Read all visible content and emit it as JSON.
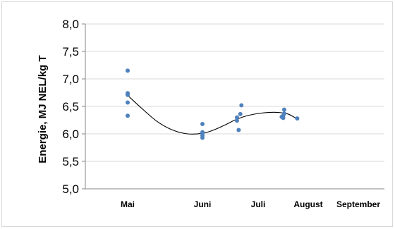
{
  "chart_data": {
    "type": "scatter",
    "title": "",
    "xlabel": "",
    "ylabel": "Energie,  MJ NEL/kg T",
    "categories": [
      "Mai",
      "Juni",
      "Juli",
      "August",
      "September"
    ],
    "ylim": [
      5.0,
      8.0
    ],
    "yticks": [
      5.0,
      5.5,
      6.0,
      6.5,
      7.0,
      7.5,
      8.0
    ],
    "ytick_labels": [
      "5,0",
      "5,5",
      "6,0",
      "6,5",
      "7,0",
      "7,5",
      "8,0"
    ],
    "grid": "horizontal",
    "legend": "none",
    "series": [
      {
        "points": [
          {
            "x": 0.0,
            "y": 7.15
          },
          {
            "x": 0.0,
            "y": 6.74
          },
          {
            "x": 0.0,
            "y": 6.71
          },
          {
            "x": 0.0,
            "y": 6.57
          },
          {
            "x": 0.0,
            "y": 6.33
          },
          {
            "x": 1.0,
            "y": 6.18
          },
          {
            "x": 1.0,
            "y": 6.03
          },
          {
            "x": 1.0,
            "y": 6.01
          },
          {
            "x": 1.0,
            "y": 5.97
          },
          {
            "x": 1.0,
            "y": 5.93
          },
          {
            "x": 1.7,
            "y": 6.52
          },
          {
            "x": 1.68,
            "y": 6.36
          },
          {
            "x": 1.62,
            "y": 6.3
          },
          {
            "x": 1.62,
            "y": 6.24
          },
          {
            "x": 1.65,
            "y": 6.07
          },
          {
            "x": 2.52,
            "y": 6.44
          },
          {
            "x": 2.52,
            "y": 6.37
          },
          {
            "x": 2.5,
            "y": 6.33
          },
          {
            "x": 2.47,
            "y": 6.31
          },
          {
            "x": 2.5,
            "y": 6.29
          },
          {
            "x": 2.78,
            "y": 6.28
          }
        ]
      }
    ],
    "trendline": {
      "type": "polynomial",
      "points": [
        {
          "x": 0.0,
          "y": 6.7
        },
        {
          "x": 0.2,
          "y": 6.45
        },
        {
          "x": 0.4,
          "y": 6.22
        },
        {
          "x": 0.6,
          "y": 6.07
        },
        {
          "x": 0.8,
          "y": 6.0
        },
        {
          "x": 1.0,
          "y": 6.01
        },
        {
          "x": 1.2,
          "y": 6.07
        },
        {
          "x": 1.4,
          "y": 6.16
        },
        {
          "x": 1.6,
          "y": 6.26
        },
        {
          "x": 1.8,
          "y": 6.33
        },
        {
          "x": 2.0,
          "y": 6.37
        },
        {
          "x": 2.2,
          "y": 6.39
        },
        {
          "x": 2.4,
          "y": 6.39
        },
        {
          "x": 2.6,
          "y": 6.36
        },
        {
          "x": 2.78,
          "y": 6.27
        }
      ]
    },
    "colors": {
      "points": "#4f81bd",
      "trendline": "#000000",
      "axis": "#868686",
      "grid": "#d9d9d9"
    }
  }
}
